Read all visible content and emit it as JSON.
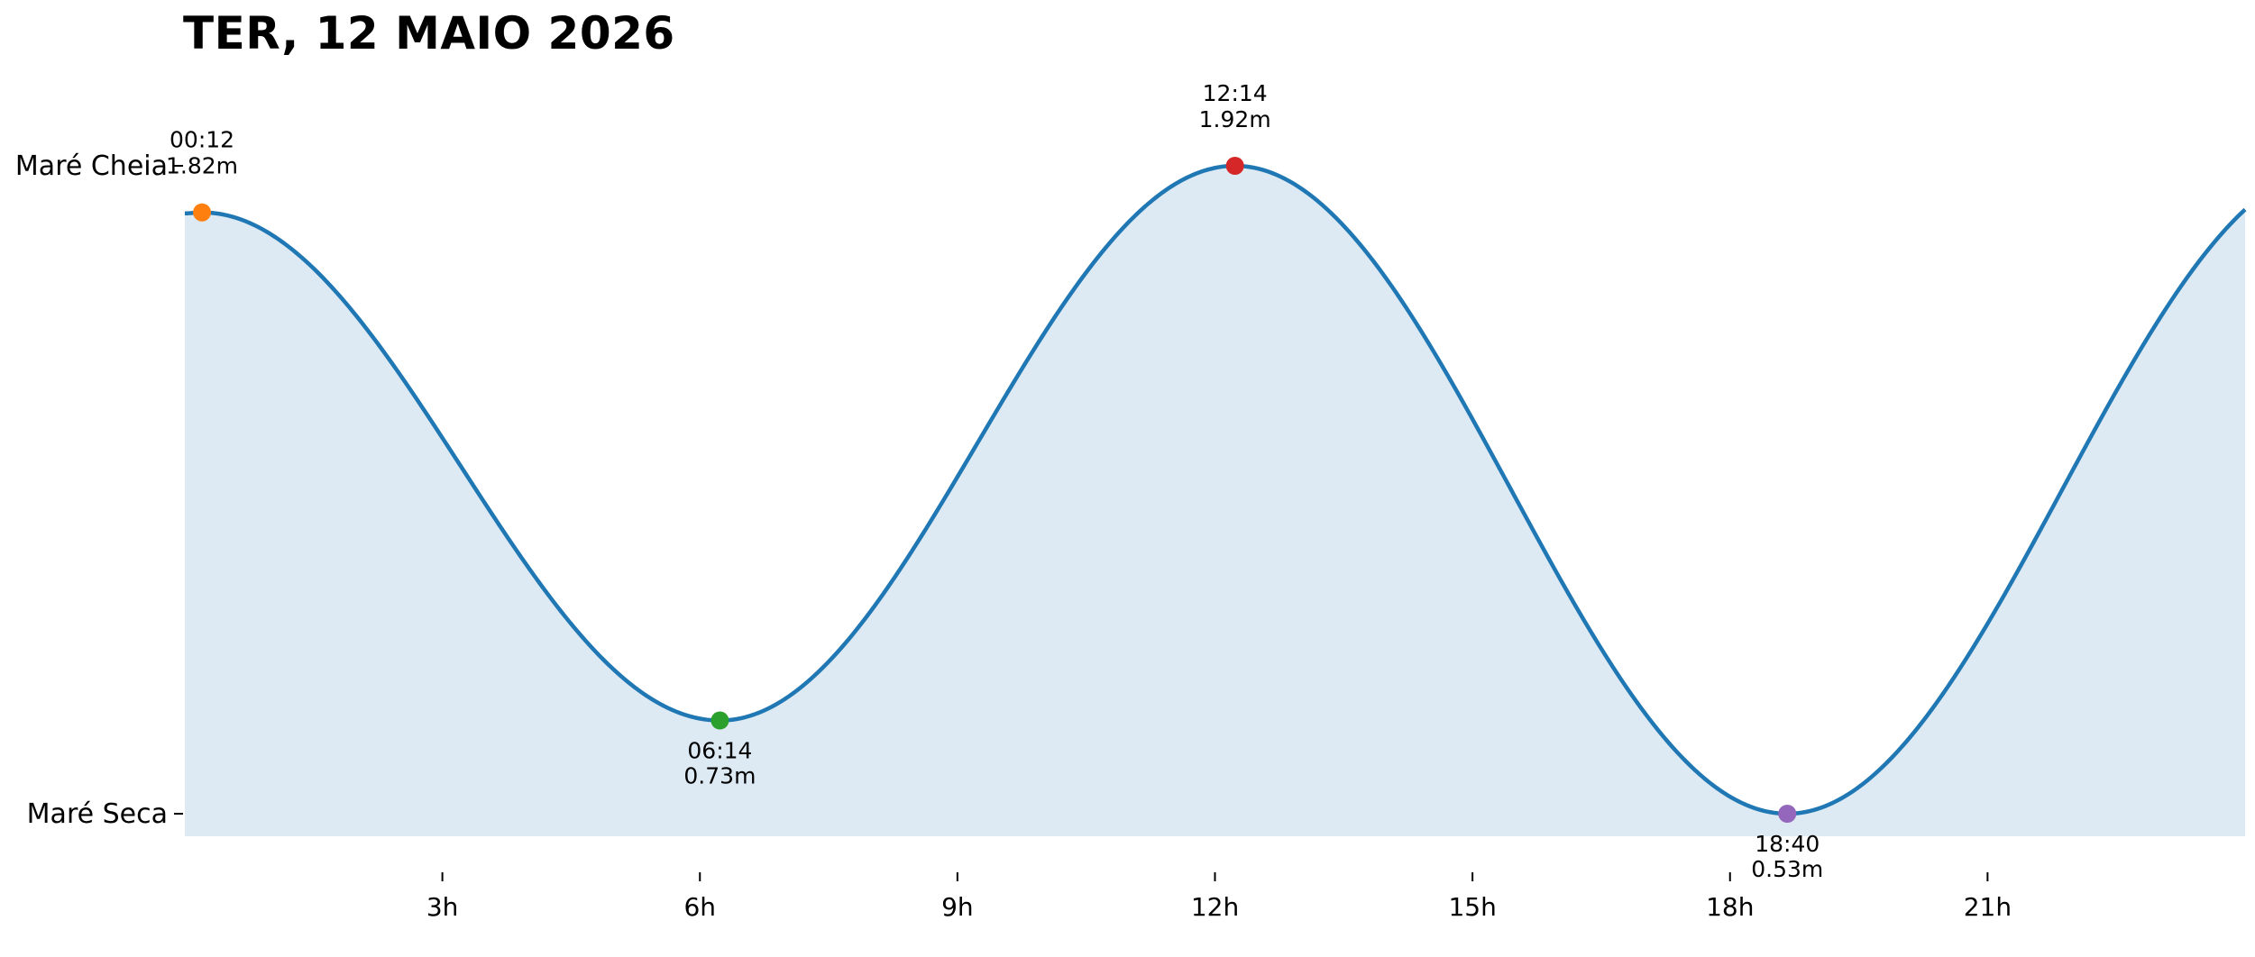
{
  "chart_data": {
    "type": "area",
    "title": "TER, 12 MAIO 2026",
    "xlabel": "",
    "ylabel": "",
    "xlim": [
      0,
      24
    ],
    "ylim": [
      0.45,
      1.95
    ],
    "x_ticks": [
      {
        "value": 3,
        "label": "3h"
      },
      {
        "value": 6,
        "label": "6h"
      },
      {
        "value": 9,
        "label": "9h"
      },
      {
        "value": 12,
        "label": "12h"
      },
      {
        "value": 15,
        "label": "15h"
      },
      {
        "value": 18,
        "label": "18h"
      },
      {
        "value": 21,
        "label": "21h"
      }
    ],
    "y_ticks": [
      {
        "value": 1.92,
        "label": "Maré Cheia"
      },
      {
        "value": 0.53,
        "label": "Maré Seca"
      }
    ],
    "extremes": [
      {
        "x": 0.2,
        "y": 1.82,
        "time": "00:12",
        "height": "1.82m",
        "kind": "high",
        "color": "#ff7f0e"
      },
      {
        "x": 6.233,
        "y": 0.73,
        "time": "06:14",
        "height": "0.73m",
        "kind": "low",
        "color": "#2ca02c"
      },
      {
        "x": 12.233,
        "y": 1.92,
        "time": "12:14",
        "height": "1.92m",
        "kind": "high",
        "color": "#d62728"
      },
      {
        "x": 18.667,
        "y": 0.53,
        "time": "18:40",
        "height": "0.53m",
        "kind": "low",
        "color": "#9467bd"
      }
    ],
    "end_point": {
      "x": 24,
      "y": 1.87
    },
    "grid": false,
    "line_color": "#1f77b4",
    "fill_color": "#dde9f3"
  }
}
